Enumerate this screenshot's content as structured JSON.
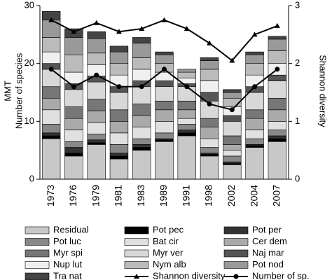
{
  "chart_data": {
    "type": "stacked-bar-line",
    "categories": [
      "1973",
      "1976",
      "1979",
      "1981",
      "1983",
      "1989",
      "1991",
      "1998",
      "2002",
      "2004",
      "2007"
    ],
    "ylabels": [
      "MMT",
      "Number of species"
    ],
    "y2label": "Shannon diversity",
    "ylim": [
      0,
      30
    ],
    "yticks": [
      0,
      10,
      20,
      30
    ],
    "y2lim": [
      0,
      3
    ],
    "y2ticks": [
      0,
      1,
      2,
      3
    ],
    "series": [
      {
        "name": "Residual",
        "color": "#c8c8c8",
        "values": [
          7,
          4,
          6,
          3.5,
          5,
          6.5,
          7.5,
          4,
          2.5,
          5.5,
          6.5
        ]
      },
      {
        "name": "Pot pec",
        "color": "#000000",
        "values": [
          0.5,
          0.5,
          0.3,
          0.5,
          0.5,
          0.3,
          0.5,
          0.3,
          0.2,
          0.3,
          0.5
        ]
      },
      {
        "name": "Pot per",
        "color": "#333333",
        "values": [
          0.5,
          1,
          0.5,
          0.5,
          0.5,
          0.2,
          0.5,
          0.2,
          0.3,
          0.2,
          0.5
        ]
      },
      {
        "name": "Pot luc",
        "color": "#888888",
        "values": [
          1.5,
          1,
          1,
          1.5,
          1,
          1,
          1,
          1,
          1,
          1,
          1
        ]
      },
      {
        "name": "Bat cir",
        "color": "#e0e0e0",
        "values": [
          2.5,
          2,
          2,
          2,
          2,
          2,
          1,
          1.5,
          1,
          1.5,
          1.5
        ]
      },
      {
        "name": "Cer dem",
        "color": "#aaaaaa",
        "values": [
          2,
          2,
          2,
          2,
          2,
          2,
          1.5,
          2,
          1,
          2,
          2
        ]
      },
      {
        "name": "Myr spi",
        "color": "#777777",
        "values": [
          2,
          2,
          2,
          2,
          2,
          1.5,
          1.5,
          1.5,
          1.5,
          1.5,
          2
        ]
      },
      {
        "name": "Myr ver",
        "color": "#d8d8d8",
        "values": [
          3,
          3,
          3,
          3,
          3,
          2.5,
          2.5,
          3,
          2.5,
          3,
          3
        ]
      },
      {
        "name": "Naj mar",
        "color": "#555555",
        "values": [
          1,
          1,
          1,
          1,
          1,
          1,
          0.5,
          1.5,
          1,
          1,
          1
        ]
      },
      {
        "name": "Nup lut",
        "color": "#f0f0f0",
        "values": [
          2,
          2,
          2,
          2,
          2,
          1.5,
          1,
          2,
          1.5,
          2,
          2
        ]
      },
      {
        "name": "Nym alb",
        "color": "#bbbbbb",
        "values": [
          2.5,
          3,
          2,
          2,
          2,
          1.5,
          1,
          2,
          1.5,
          2,
          2.2
        ]
      },
      {
        "name": "Pot nod",
        "color": "#999999",
        "values": [
          3,
          3,
          2.5,
          2,
          2.5,
          1.5,
          0.5,
          1.5,
          1,
          1.5,
          2
        ]
      },
      {
        "name": "Tra nat",
        "color": "#444444",
        "values": [
          1.5,
          1.5,
          1.2,
          1,
          1,
          0.5,
          0,
          0.5,
          0.5,
          0.5,
          0.5
        ]
      },
      {
        "name": "Shannon diversity",
        "type": "line",
        "axis": "y2",
        "marker": "triangle",
        "color": "#000000",
        "values": [
          2.75,
          2.55,
          2.7,
          2.55,
          2.6,
          2.75,
          2.6,
          2.35,
          2.05,
          2.5,
          2.65
        ]
      },
      {
        "name": "Number of sp.",
        "type": "line",
        "marker": "circle",
        "color": "#000000",
        "values": [
          19,
          16,
          18,
          16,
          16,
          19,
          16,
          13,
          12,
          16,
          19
        ]
      }
    ]
  }
}
